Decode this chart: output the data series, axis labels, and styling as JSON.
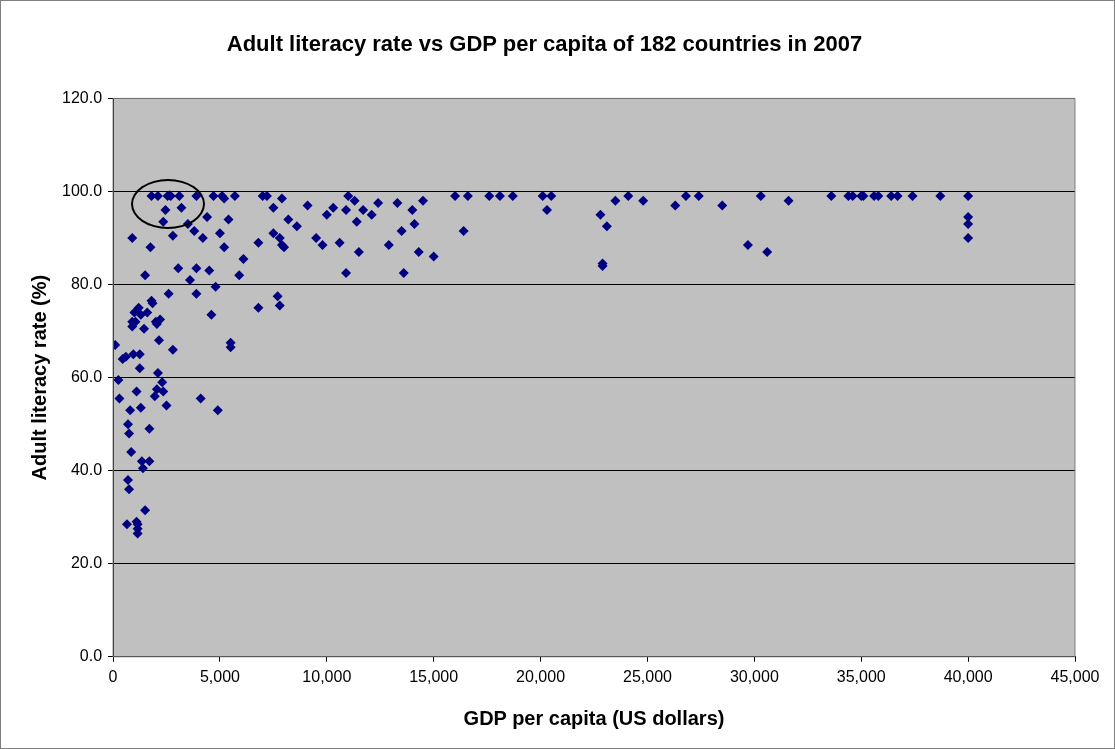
{
  "chart_data": {
    "type": "scatter",
    "title": "Adult literacy rate vs GDP per capita of 182 countries in 2007",
    "xlabel": "GDP per capita (US dollars)",
    "ylabel": "Adult literacy rate (%)",
    "xlim": [
      0,
      45000
    ],
    "xticks": [
      0,
      {
        "value": 5000,
        "label": "5,000"
      },
      {
        "value": 10000,
        "label": "10,000"
      },
      {
        "value": 15000,
        "label": "15,000"
      },
      {
        "value": 20000,
        "label": "20,000"
      },
      {
        "value": 25000,
        "label": "25,000"
      },
      {
        "value": 30000,
        "label": "30,000"
      },
      {
        "value": 35000,
        "label": "35,000"
      },
      {
        "value": 40000,
        "label": "40,000"
      },
      {
        "value": 45000,
        "label": "45,000"
      }
    ],
    "ylim": [
      0,
      120
    ],
    "yticks": [
      {
        "value": 0,
        "label": "0.0"
      },
      {
        "value": 20,
        "label": "20.0"
      },
      {
        "value": 40,
        "label": "40.0"
      },
      {
        "value": 60,
        "label": "60.0"
      },
      {
        "value": 80,
        "label": "80.0"
      },
      {
        "value": 100,
        "label": "100.0"
      },
      {
        "value": 120,
        "label": "120.0"
      }
    ],
    "grid": "y",
    "legend": false,
    "marker": "diamond",
    "series": [
      {
        "color": "#000080",
        "x": [
          100,
          250,
          300,
          450,
          600,
          650,
          700,
          750,
          700,
          750,
          800,
          850,
          900,
          900,
          950,
          1000,
          1050,
          1100,
          1100,
          1150,
          1150,
          1150,
          1250,
          1250,
          1200,
          1300,
          1300,
          1350,
          1400,
          1450,
          1500,
          1500,
          1600,
          1700,
          1700,
          1750,
          1800,
          1850,
          1950,
          2000,
          2050,
          2050,
          2100,
          2150,
          2200,
          2300,
          2350,
          2500,
          2600,
          2800,
          900,
          1800,
          2100,
          2550,
          2650,
          2700,
          2450,
          2350,
          2800,
          3050,
          3100,
          3200,
          3500,
          3600,
          3800,
          3900,
          3900,
          4100,
          3900,
          4200,
          4400,
          4500,
          4600,
          4700,
          4800,
          4900,
          5000,
          5100,
          5200,
          5200,
          5400,
          5500,
          5500,
          5700,
          5900,
          6100,
          6800,
          6800,
          7000,
          7200,
          7500,
          7500,
          7700,
          7800,
          7800,
          7900,
          7900,
          8000,
          8200,
          8600,
          9100,
          9500,
          9800,
          10000,
          10300,
          10600,
          10900,
          10900,
          11000,
          11300,
          11400,
          11500,
          11700,
          12100,
          12400,
          12900,
          13300,
          13500,
          13600,
          14000,
          14100,
          14300,
          14500,
          15000,
          16000,
          16400,
          16600,
          17600,
          18100,
          18700,
          20100,
          20300,
          20500,
          22800,
          22900,
          22900,
          23100,
          23500,
          24100,
          24800,
          26300,
          26800,
          27400,
          28500,
          29700,
          30300,
          30600,
          31600,
          33600,
          34400,
          34600,
          35000,
          35100,
          35600,
          35800,
          36400,
          36700,
          37400,
          38700,
          40000,
          40000,
          40000,
          40000
        ],
        "values": [
          67,
          59.5,
          55.5,
          64,
          64.5,
          28.5,
          38,
          36,
          50,
          48,
          53,
          44,
          72,
          71,
          65,
          74,
          72,
          57,
          29,
          27.5,
          26.5,
          28.5,
          62,
          65,
          75,
          73.5,
          53.5,
          42,
          40.5,
          70.5,
          82,
          31.5,
          74,
          49,
          42,
          88,
          76.5,
          76,
          56,
          72,
          71.5,
          57.5,
          61,
          68,
          72.5,
          59,
          57,
          54,
          78,
          66,
          90,
          99,
          99,
          99,
          99.2,
          99,
          96,
          93.5,
          90.5,
          83.5,
          99,
          96.5,
          93,
          81,
          91.5,
          83.5,
          78,
          55.5,
          99,
          90,
          94.5,
          83,
          73.5,
          99,
          79.5,
          53,
          91,
          99,
          98.5,
          88,
          94,
          66.5,
          67.5,
          99,
          82,
          85.5,
          75,
          89,
          99,
          99,
          96.5,
          91,
          77.5,
          90,
          75.5,
          98.5,
          88.5,
          88,
          94,
          92.5,
          97,
          90,
          88.5,
          95,
          96.5,
          89,
          96,
          82.5,
          99,
          98,
          93.5,
          87,
          96,
          95,
          97.5,
          88.5,
          97.5,
          91.5,
          82.5,
          96,
          93,
          87,
          98,
          86,
          99,
          91.5,
          99,
          99,
          99,
          99,
          99,
          96,
          99,
          95,
          84.5,
          84,
          92.5,
          98,
          99,
          98,
          97,
          99,
          99,
          97,
          88.5,
          99,
          87,
          98,
          99,
          99,
          99,
          99,
          99,
          99,
          99,
          99,
          99,
          99,
          99,
          99,
          94.5,
          93,
          90
        ]
      }
    ]
  }
}
